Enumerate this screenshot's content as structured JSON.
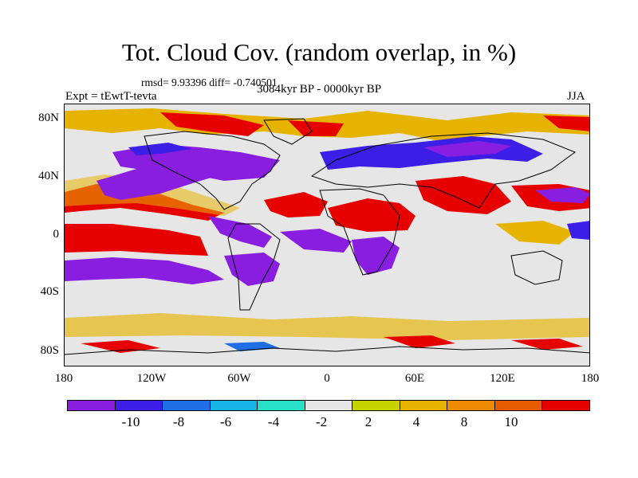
{
  "title": "Tot. Cloud Cov. (random overlap, in %)",
  "stats": "rmsd= 9.93396 diff= -0.740501",
  "experiment": "Expt = tEwtT-tevta",
  "period": "3084kyr BP - 0000kyr BP",
  "season": "JJA",
  "lat_labels": [
    "80N",
    "40N",
    "0",
    "40S",
    "80S"
  ],
  "lon_labels": [
    "180",
    "120W",
    "60W",
    "0",
    "60E",
    "120E",
    "180"
  ],
  "colorbar": {
    "colors": [
      "#8a1ee0",
      "#3c1ee6",
      "#1e6ee6",
      "#16b4e6",
      "#28e0c8",
      "#e6e6e6",
      "#c8d200",
      "#e6b400",
      "#ee8a00",
      "#e65a00",
      "#e60000"
    ],
    "labels": [
      "-10",
      "-8",
      "-6",
      "-4",
      "-2",
      "2",
      "4",
      "8",
      "10"
    ]
  },
  "palette": {
    "strong_neg": "#8a1ee0",
    "neg": "#3c1ee6",
    "mid_neg": "#1e6ee6",
    "neutral": "#e6e6e6",
    "pos_low": "#c8d200",
    "pos": "#e6b400",
    "strong_pos": "#e60000"
  }
}
